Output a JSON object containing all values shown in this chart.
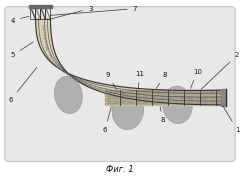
{
  "bg_color": "#ffffff",
  "fig_bg": "#ffffff",
  "formation_color": "#e8e8e8",
  "formation_edge": "#c0c0c0",
  "blob_color": "#a0a0a0",
  "pipe_fill": "#d8d0b0",
  "pipe_edge": "#333333",
  "title": "Фиг. 1",
  "title_fontsize": 6.0
}
